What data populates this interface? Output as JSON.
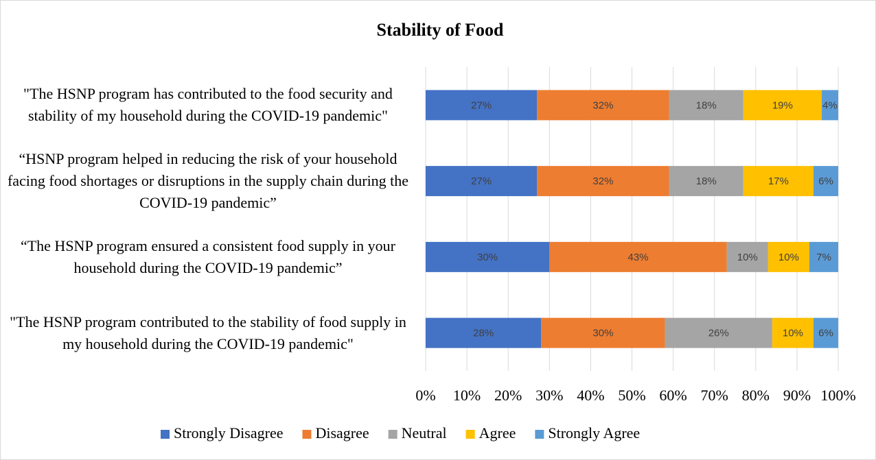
{
  "chart_data": {
    "type": "stacked_barh",
    "title": "Stability of Food",
    "categories": [
      "\"The HSNP program has contributed to the food security and stability of my household during the COVID-19 pandemic\"",
      "“HSNP program helped in reducing the risk of your household facing food shortages or disruptions in the supply chain during the COVID-19 pandemic”",
      "“The HSNP program ensured a consistent food supply in your household during the COVID-19 pandemic”",
      "\"The HSNP program contributed to the stability of food supply in my household during the COVID-19 pandemic\""
    ],
    "series": [
      {
        "name": "Strongly Disagree",
        "color": "#4472c4",
        "values": [
          27,
          27,
          30,
          28
        ],
        "value_labels": [
          "27%",
          "27%",
          "30%",
          "28%"
        ]
      },
      {
        "name": "Disagree",
        "color": "#ed7d31",
        "values": [
          32,
          32,
          43,
          30
        ],
        "value_labels": [
          "32%",
          "32%",
          "43%",
          "30%"
        ]
      },
      {
        "name": "Neutral",
        "color": "#a5a5a5",
        "values": [
          18,
          18,
          10,
          26
        ],
        "value_labels": [
          "18%",
          "18%",
          "10%",
          "26%"
        ]
      },
      {
        "name": "Agree",
        "color": "#ffc000",
        "values": [
          19,
          17,
          10,
          10
        ],
        "value_labels": [
          "19%",
          "17%",
          "10%",
          "10%"
        ]
      },
      {
        "name": "Strongly Agree",
        "color": "#5b9bd5",
        "values": [
          4,
          6,
          7,
          6
        ],
        "value_labels": [
          "4%",
          "6%",
          "7%",
          "6%"
        ]
      }
    ],
    "xlim": [
      0,
      100
    ],
    "xticks": [
      {
        "value": 0,
        "label": "0%"
      },
      {
        "value": 10,
        "label": "10%"
      },
      {
        "value": 20,
        "label": "20%"
      },
      {
        "value": 30,
        "label": "30%"
      },
      {
        "value": 40,
        "label": "40%"
      },
      {
        "value": 50,
        "label": "50%"
      },
      {
        "value": 60,
        "label": "60%"
      },
      {
        "value": 70,
        "label": "70%"
      },
      {
        "value": 80,
        "label": "80%"
      },
      {
        "value": 90,
        "label": "90%"
      },
      {
        "value": 100,
        "label": "100%"
      }
    ],
    "grid": true,
    "legend": "bottom"
  }
}
